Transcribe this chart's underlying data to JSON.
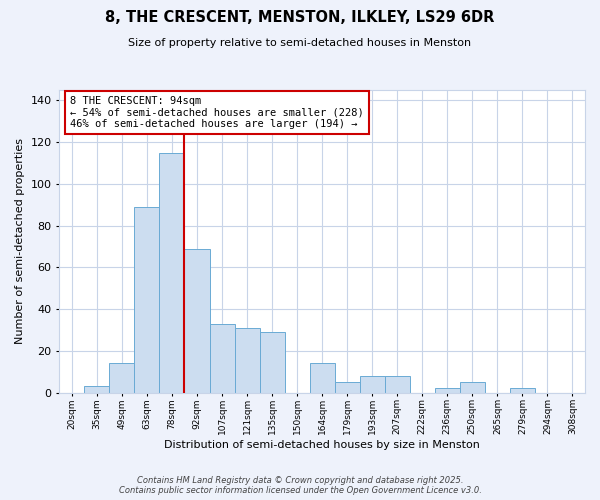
{
  "title": "8, THE CRESCENT, MENSTON, ILKLEY, LS29 6DR",
  "subtitle": "Size of property relative to semi-detached houses in Menston",
  "xlabel": "Distribution of semi-detached houses by size in Menston",
  "ylabel": "Number of semi-detached properties",
  "categories": [
    "20sqm",
    "35sqm",
    "49sqm",
    "63sqm",
    "78sqm",
    "92sqm",
    "107sqm",
    "121sqm",
    "135sqm",
    "150sqm",
    "164sqm",
    "179sqm",
    "193sqm",
    "207sqm",
    "222sqm",
    "236sqm",
    "250sqm",
    "265sqm",
    "279sqm",
    "294sqm",
    "308sqm"
  ],
  "values": [
    0,
    3,
    14,
    89,
    115,
    69,
    33,
    31,
    29,
    0,
    14,
    5,
    8,
    8,
    0,
    2,
    5,
    0,
    2,
    0,
    0
  ],
  "bar_color": "#ccddf0",
  "bar_edge_color": "#6aaad4",
  "vline_x_index": 4,
  "vline_color": "#cc0000",
  "annotation_text": "8 THE CRESCENT: 94sqm\n← 54% of semi-detached houses are smaller (228)\n46% of semi-detached houses are larger (194) →",
  "annotation_box_edge_color": "#cc0000",
  "ylim": [
    0,
    145
  ],
  "yticks": [
    0,
    20,
    40,
    60,
    80,
    100,
    120,
    140
  ],
  "footer_line1": "Contains HM Land Registry data © Crown copyright and database right 2025.",
  "footer_line2": "Contains public sector information licensed under the Open Government Licence v3.0.",
  "background_color": "#eef2fb",
  "plot_bg_color": "#ffffff",
  "grid_color": "#c8d4e8"
}
